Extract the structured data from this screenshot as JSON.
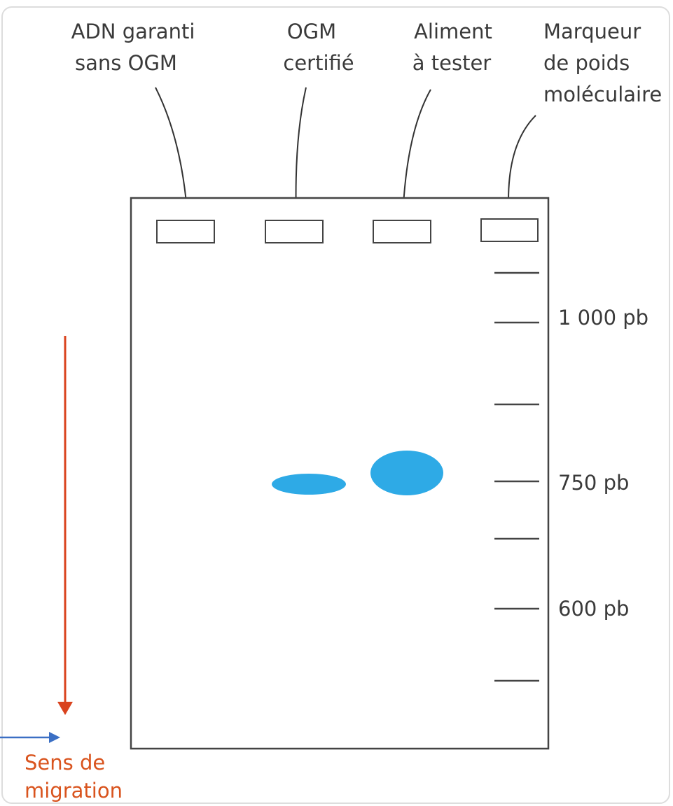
{
  "lanes": [
    {
      "label_lines": [
        "ADN garanti",
        "sans OGM"
      ]
    },
    {
      "label_lines": [
        "OGM",
        "certifié"
      ]
    },
    {
      "label_lines": [
        "Aliment",
        "à tester"
      ]
    },
    {
      "label_lines": [
        "Marqueur",
        "de poids",
        "moléculaire"
      ]
    }
  ],
  "marker_labels": [
    "1 000 pb",
    "750 pb",
    "600 pb"
  ],
  "migration_lines": [
    "Sens de",
    "migration"
  ]
}
